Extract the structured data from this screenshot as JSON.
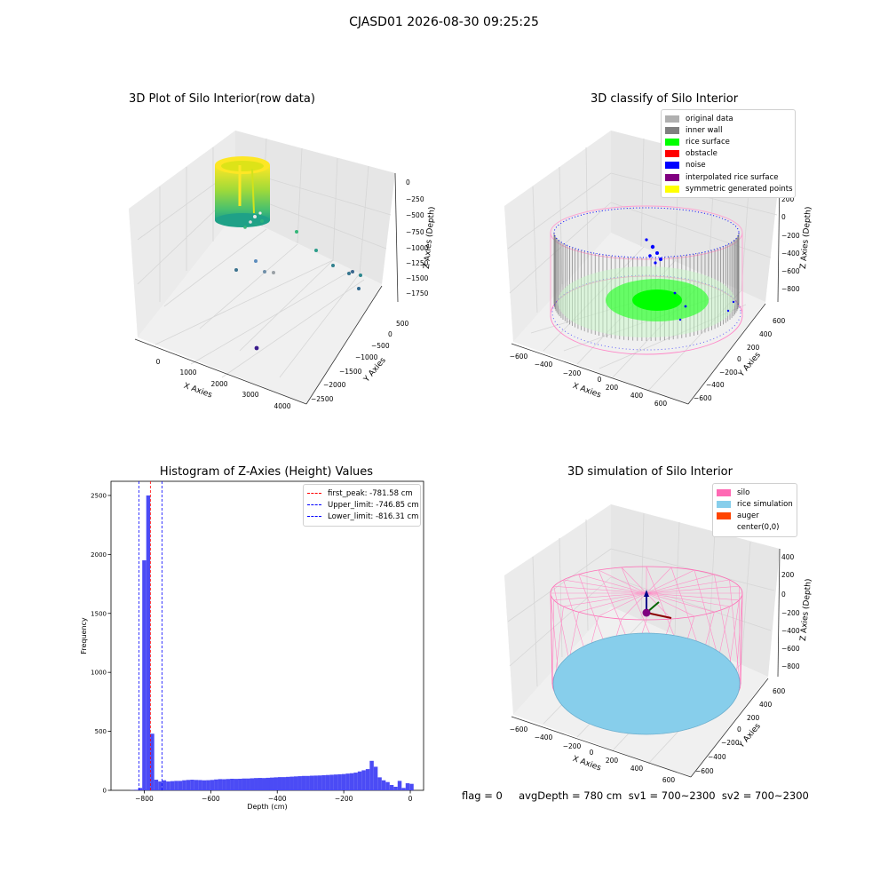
{
  "suptitle": "CJASD01 2026-08-30 09:25:25",
  "footer": "flag = 0     avgDepth = 780 cm  sv1 = 700~2300  sv2 = 700~2300",
  "chart_data": [
    {
      "type": "scatter",
      "title": "3D Plot of Silo Interior(row data)",
      "xlabel": "X Axies",
      "ylabel": "Y Axies",
      "zlabel": "Z Axies (Depth)",
      "x_ticks": [
        "0",
        "1000",
        "2000",
        "3000",
        "4000"
      ],
      "y_ticks": [
        "500",
        "0",
        "−500",
        "−1000",
        "−1500",
        "−2000",
        "−2500"
      ],
      "z_ticks": [
        "0",
        "−250",
        "−500",
        "−750",
        "−1000",
        "−1250",
        "−1500",
        "−1750"
      ],
      "outlier_points": [
        {
          "x": 2100,
          "y": 300,
          "z": -850
        },
        {
          "x": 2800,
          "y": -100,
          "z": -1000
        },
        {
          "x": 3300,
          "y": -200,
          "z": -1200
        },
        {
          "x": 3600,
          "y": -400,
          "z": -1400
        },
        {
          "x": 3700,
          "y": -450,
          "z": -1350
        },
        {
          "x": 3900,
          "y": -550,
          "z": -1300
        },
        {
          "x": 1200,
          "y": -200,
          "z": -1250
        },
        {
          "x": 1500,
          "y": -300,
          "z": -1350
        },
        {
          "x": 1700,
          "y": -350,
          "z": -1400
        },
        {
          "x": 300,
          "y": -100,
          "z": -1250
        },
        {
          "x": 3800,
          "y": -1500,
          "z": -1500
        },
        {
          "x": 2500,
          "y": -2400,
          "z": -1750
        }
      ]
    },
    {
      "type": "scatter",
      "title": "3D classify of Silo Interior",
      "xlabel": "X Axies",
      "ylabel": "Y Axies",
      "zlabel": "Z Axies (Depth)",
      "x_ticks": [
        "−600",
        "−400",
        "−200",
        "0",
        "200",
        "400",
        "600"
      ],
      "y_ticks": [
        "600",
        "400",
        "200",
        "0",
        "−200",
        "−400",
        "−600"
      ],
      "z_ticks": [
        "200",
        "0",
        "−200",
        "−400",
        "−600",
        "−800"
      ],
      "legend": [
        {
          "label": "original data",
          "color": "#b0b0b0"
        },
        {
          "label": "inner wall",
          "color": "#808080"
        },
        {
          "label": "rice surface",
          "color": "#00ff00"
        },
        {
          "label": "obstacle",
          "color": "#ff0000"
        },
        {
          "label": "noise",
          "color": "#0000ff"
        },
        {
          "label": "interpolated rice surface",
          "color": "#800080"
        },
        {
          "label": "symmetric generated points",
          "color": "#ffff00"
        }
      ]
    },
    {
      "type": "bar",
      "title": "Histogram of Z-Axies (Height) Values",
      "xlabel": "Depth (cm)",
      "ylabel": "Frequency",
      "xlim": [
        -900,
        40
      ],
      "ylim": [
        0,
        2620
      ],
      "x_ticks": [
        "−800",
        "−600",
        "−400",
        "−200",
        "0"
      ],
      "y_ticks": [
        "0",
        "500",
        "1000",
        "1500",
        "2000",
        "2500"
      ],
      "bin_width": 12,
      "bins": [
        {
          "x": -842,
          "v": 2
        },
        {
          "x": -830,
          "v": 5
        },
        {
          "x": -818,
          "v": 20
        },
        {
          "x": -806,
          "v": 1950
        },
        {
          "x": -794,
          "v": 2500
        },
        {
          "x": -782,
          "v": 480
        },
        {
          "x": -770,
          "v": 90
        },
        {
          "x": -758,
          "v": 75
        },
        {
          "x": -746,
          "v": 85
        },
        {
          "x": -734,
          "v": 75
        },
        {
          "x": -722,
          "v": 78
        },
        {
          "x": -710,
          "v": 80
        },
        {
          "x": -698,
          "v": 80
        },
        {
          "x": -686,
          "v": 85
        },
        {
          "x": -674,
          "v": 88
        },
        {
          "x": -662,
          "v": 90
        },
        {
          "x": -650,
          "v": 88
        },
        {
          "x": -638,
          "v": 87
        },
        {
          "x": -626,
          "v": 85
        },
        {
          "x": -614,
          "v": 86
        },
        {
          "x": -602,
          "v": 88
        },
        {
          "x": -590,
          "v": 92
        },
        {
          "x": -578,
          "v": 95
        },
        {
          "x": -566,
          "v": 94
        },
        {
          "x": -554,
          "v": 96
        },
        {
          "x": -542,
          "v": 98
        },
        {
          "x": -530,
          "v": 97
        },
        {
          "x": -518,
          "v": 98
        },
        {
          "x": -506,
          "v": 100
        },
        {
          "x": -494,
          "v": 100
        },
        {
          "x": -482,
          "v": 102
        },
        {
          "x": -470,
          "v": 104
        },
        {
          "x": -458,
          "v": 105
        },
        {
          "x": -446,
          "v": 104
        },
        {
          "x": -434,
          "v": 106
        },
        {
          "x": -422,
          "v": 108
        },
        {
          "x": -410,
          "v": 110
        },
        {
          "x": -398,
          "v": 112
        },
        {
          "x": -386,
          "v": 112
        },
        {
          "x": -374,
          "v": 114
        },
        {
          "x": -362,
          "v": 116
        },
        {
          "x": -350,
          "v": 118
        },
        {
          "x": -338,
          "v": 120
        },
        {
          "x": -326,
          "v": 122
        },
        {
          "x": -314,
          "v": 122
        },
        {
          "x": -302,
          "v": 124
        },
        {
          "x": -290,
          "v": 125
        },
        {
          "x": -278,
          "v": 126
        },
        {
          "x": -266,
          "v": 128
        },
        {
          "x": -254,
          "v": 130
        },
        {
          "x": -242,
          "v": 132
        },
        {
          "x": -230,
          "v": 134
        },
        {
          "x": -218,
          "v": 136
        },
        {
          "x": -206,
          "v": 138
        },
        {
          "x": -194,
          "v": 142
        },
        {
          "x": -182,
          "v": 145
        },
        {
          "x": -170,
          "v": 150
        },
        {
          "x": -158,
          "v": 160
        },
        {
          "x": -146,
          "v": 170
        },
        {
          "x": -134,
          "v": 180
        },
        {
          "x": -122,
          "v": 250
        },
        {
          "x": -110,
          "v": 200
        },
        {
          "x": -98,
          "v": 110
        },
        {
          "x": -86,
          "v": 85
        },
        {
          "x": -74,
          "v": 70
        },
        {
          "x": -62,
          "v": 45
        },
        {
          "x": -50,
          "v": 30
        },
        {
          "x": -38,
          "v": 80
        },
        {
          "x": -26,
          "v": 20
        },
        {
          "x": -14,
          "v": 60
        },
        {
          "x": -2,
          "v": 55
        }
      ],
      "vlines": [
        {
          "label": "first_peak: -781.58 cm",
          "x": -781.58,
          "color": "#ff0000"
        },
        {
          "label": "Upper_limit: -746.85 cm",
          "x": -746.85,
          "color": "#0000ff"
        },
        {
          "label": "Lower_limit: -816.31 cm",
          "x": -816.31,
          "color": "#0000ff"
        }
      ]
    },
    {
      "type": "scatter",
      "title": "3D simulation of Silo Interior",
      "xlabel": "X Axies",
      "ylabel": "Y Axies",
      "zlabel": "Z Axies (Depth)",
      "x_ticks": [
        "−600",
        "−400",
        "−200",
        "0",
        "200",
        "400",
        "600"
      ],
      "y_ticks": [
        "600",
        "400",
        "200",
        "0",
        "−200",
        "−400",
        "−600"
      ],
      "z_ticks": [
        "400",
        "200",
        "0",
        "−200",
        "−400",
        "−600",
        "−800"
      ],
      "legend": [
        {
          "label": "silo",
          "color": "#ff69b4"
        },
        {
          "label": "rice simulation",
          "color": "#87ceeb"
        },
        {
          "label": "auger",
          "color": "#ff4500"
        },
        {
          "label": "center(0,0)",
          "color": "#ffffff"
        }
      ]
    }
  ]
}
